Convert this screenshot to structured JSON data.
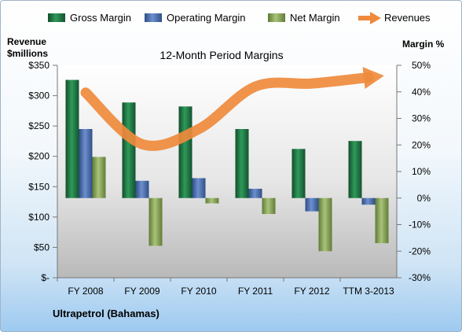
{
  "chart_data": {
    "type": "bar",
    "title": "12-Month Period Margins",
    "left_axis_title": [
      "Revenue",
      "$millions"
    ],
    "right_axis_title": "Margin %",
    "company": "Ultrapetrol (Bahamas)",
    "categories": [
      "FY 2008",
      "FY 2009",
      "FY 2010",
      "FY 2011",
      "FY 2012",
      "TTM 3-2013"
    ],
    "left_ticks": [
      "$-",
      "$50",
      "$100",
      "$150",
      "$200",
      "$250",
      "$300",
      "$350"
    ],
    "right_ticks": [
      "-30%",
      "-20%",
      "-10%",
      "0%",
      "10%",
      "20%",
      "30%",
      "40%",
      "50%"
    ],
    "left_ylim": [
      0,
      350
    ],
    "right_ylim": [
      -30,
      50
    ],
    "legend_position": "top",
    "series": [
      {
        "name": "Gross Margin",
        "axis": "right",
        "color": "#217a46",
        "values": [
          44.5,
          36,
          34.5,
          26,
          18.5,
          21.5
        ]
      },
      {
        "name": "Operating Margin",
        "axis": "right",
        "color": "#4a6fae",
        "values": [
          26,
          6.5,
          7.5,
          3.5,
          -5,
          -2.5
        ]
      },
      {
        "name": "Net Margin",
        "axis": "right",
        "color": "#8aa85a",
        "values": [
          15.5,
          -18,
          -2,
          -6,
          -20,
          -17
        ]
      },
      {
        "name": "Revenues",
        "axis": "left",
        "color": "#ef8a3c",
        "values": [
          305,
          220,
          245,
          315,
          320,
          330
        ]
      }
    ]
  }
}
